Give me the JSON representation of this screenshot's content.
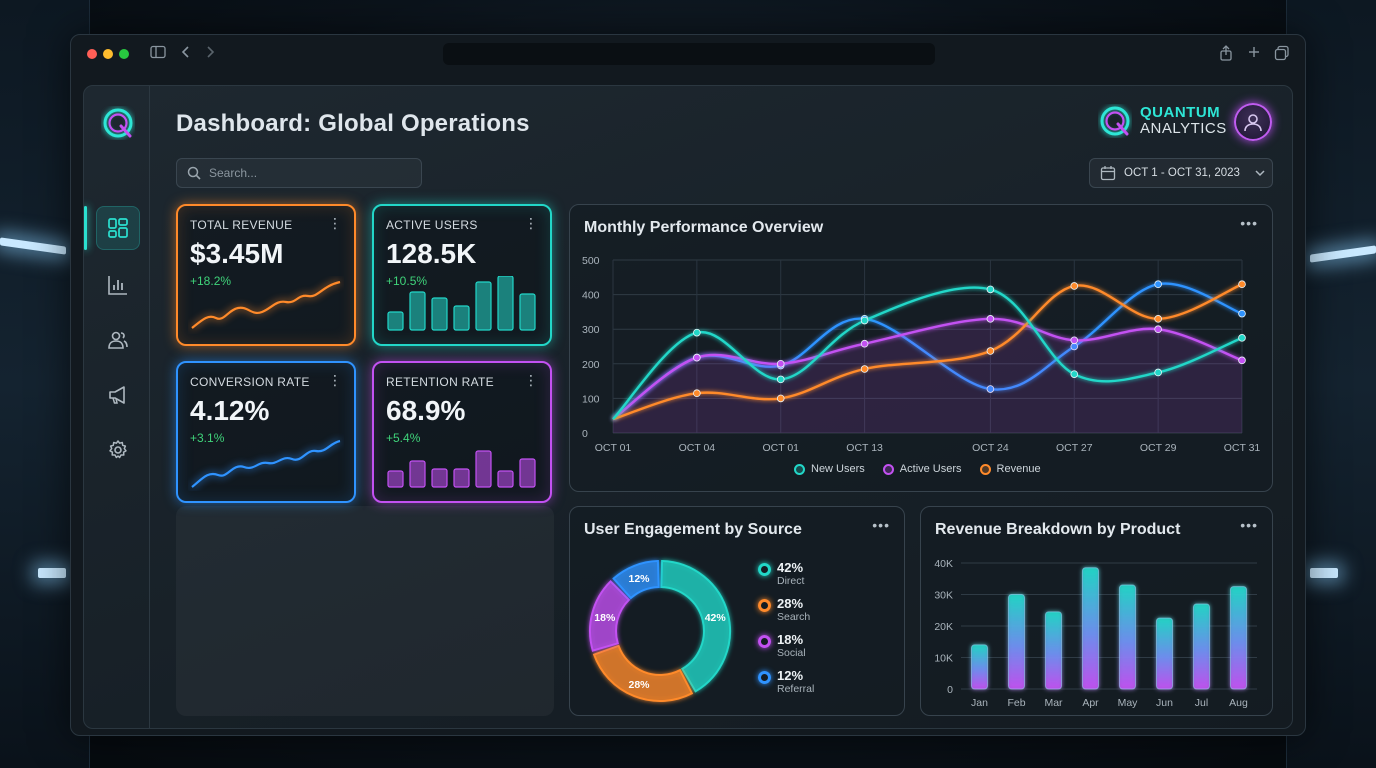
{
  "colors": {
    "teal": "#22d7c8",
    "purple": "#c351f2",
    "orange": "#ff8a2a",
    "blue": "#2f93ff",
    "positive": "#3fd37a"
  },
  "window": {
    "controls": [
      "close",
      "minimize",
      "maximize"
    ],
    "toolbar_icons": [
      "sidebar-icon",
      "back-icon",
      "forward-icon",
      "share-icon",
      "new-tab-icon",
      "tabs-icon"
    ]
  },
  "sidebar": {
    "items": [
      {
        "id": "dashboard",
        "icon": "dashboard-grid-icon",
        "active": true
      },
      {
        "id": "analytics",
        "icon": "bar-chart-icon",
        "active": false
      },
      {
        "id": "users",
        "icon": "users-icon",
        "active": false
      },
      {
        "id": "campaigns",
        "icon": "megaphone-icon",
        "active": false
      },
      {
        "id": "settings",
        "icon": "gear-icon",
        "active": false
      }
    ]
  },
  "header": {
    "title": "Dashboard: Global Operations",
    "search_placeholder": "Search...",
    "brand_line1": "QUANTUM",
    "brand_line2": "ANALYTICS",
    "date_range": "OCT 1 - OCT 31, 2023"
  },
  "kpis": [
    {
      "title": "TOTAL REVENUE",
      "value": "$3.45M",
      "delta": "+18.2%",
      "color": "orange",
      "chart": "line"
    },
    {
      "title": "ACTIVE USERS",
      "value": "128.5K",
      "delta": "+10.5%",
      "color": "teal",
      "chart": "bar"
    },
    {
      "title": "CONVERSION RATE",
      "value": "4.12%",
      "delta": "+3.1%",
      "color": "blue",
      "chart": "line"
    },
    {
      "title": "RETENTION RATE",
      "value": "68.9%",
      "delta": "+5.4%",
      "color": "purple",
      "chart": "bar"
    }
  ],
  "performance": {
    "title": "Monthly Performance Overview",
    "more": "•••",
    "legend": [
      "New Users",
      "Active Users",
      "Revenue"
    ]
  },
  "engagement": {
    "title": "User Engagement by Source",
    "more": "•••"
  },
  "revenue_product": {
    "title": "Revenue Breakdown by Product",
    "more": "•••"
  },
  "chart_data": [
    {
      "type": "line",
      "title": "Monthly Performance Overview",
      "x": [
        "OCT 01",
        "OCT 04",
        "OCT 01",
        "OCT 13",
        "OCT 24",
        "OCT 27",
        "OCT 29",
        "OCT 31"
      ],
      "x_positions": [
        0,
        1,
        2,
        3,
        4.5,
        5.5,
        6.5,
        7.5
      ],
      "ylim": [
        0,
        500
      ],
      "yticks": [
        0,
        100,
        200,
        300,
        400,
        500
      ],
      "grid": true,
      "legend_position": "bottom",
      "series": [
        {
          "name": "New Users",
          "color": "teal",
          "points": [
            [
              0,
              40
            ],
            [
              1,
              290
            ],
            [
              2,
              155
            ],
            [
              3,
              325
            ],
            [
              4.5,
              415
            ],
            [
              5.5,
              170
            ],
            [
              6.5,
              175
            ],
            [
              7.5,
              275
            ]
          ]
        },
        {
          "name": "Active Users",
          "color": "purple",
          "points": [
            [
              0,
              40
            ],
            [
              1,
              218
            ],
            [
              2,
              200
            ],
            [
              3,
              258
            ],
            [
              4.5,
              330
            ],
            [
              5.5,
              268
            ],
            [
              6.5,
              300
            ],
            [
              7.5,
              210
            ]
          ]
        },
        {
          "name": "Revenue",
          "color": "orange",
          "points": [
            [
              0,
              40
            ],
            [
              1,
              115
            ],
            [
              2,
              100
            ],
            [
              3,
              185
            ],
            [
              4.5,
              237
            ],
            [
              5.5,
              425
            ],
            [
              6.5,
              330
            ],
            [
              7.5,
              430
            ]
          ]
        },
        {
          "name": "",
          "color": "blue",
          "points": [
            [
              0,
              40
            ],
            [
              1,
              218
            ],
            [
              2,
              195
            ],
            [
              3,
              330
            ],
            [
              4.5,
              127
            ],
            [
              5.5,
              250
            ],
            [
              6.5,
              430
            ],
            [
              7.5,
              345
            ]
          ]
        }
      ]
    },
    {
      "type": "pie",
      "title": "User Engagement by Source",
      "slices": [
        {
          "label": "Direct",
          "value": 42,
          "display": "42%",
          "color": "teal"
        },
        {
          "label": "Search",
          "value": 28,
          "display": "28%",
          "color": "orange"
        },
        {
          "label": "Social",
          "value": 18,
          "display": "18%",
          "color": "purple"
        },
        {
          "label": "Referral",
          "value": 12,
          "display": "12%",
          "color": "blue"
        }
      ]
    },
    {
      "type": "bar",
      "title": "Revenue Breakdown by Product",
      "categories": [
        "Jan",
        "Feb",
        "Mar",
        "Apr",
        "May",
        "Jun",
        "Jul",
        "Aug"
      ],
      "values": [
        14000,
        30000,
        24500,
        38500,
        33000,
        22500,
        27000,
        32500
      ],
      "ylim": [
        0,
        40000
      ],
      "yticks": [
        0,
        10000,
        20000,
        30000,
        40000
      ],
      "ytick_labels": [
        "0",
        "10K",
        "20K",
        "30K",
        "40K"
      ],
      "grid": true
    }
  ]
}
